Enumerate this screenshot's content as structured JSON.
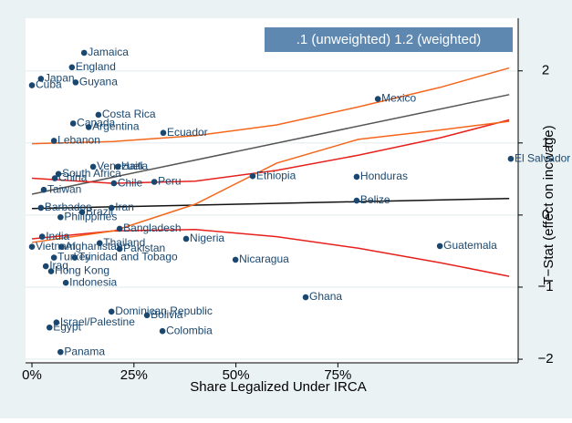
{
  "chart_data": {
    "type": "scatter",
    "annotation": ".1 (unweighted) 1.2 (weighted)",
    "xlabel": "Share Legalized Under IRCA",
    "ylabel": "T−Stat (effect on incwage)",
    "xlim": [
      -1.57,
      119.2
    ],
    "ylim": [
      -2.05,
      2.73
    ],
    "xticks": [
      {
        "value": 0,
        "label": "0%"
      },
      {
        "value": 25,
        "label": "25%"
      },
      {
        "value": 50,
        "label": "50%"
      },
      {
        "value": 75,
        "label": "75%"
      }
    ],
    "yticks": [
      {
        "value": -2,
        "label": "−2"
      },
      {
        "value": -1,
        "label": "−1"
      },
      0,
      1,
      2
    ],
    "grid": true,
    "marker_color": "#1a476f",
    "points": [
      {
        "label": "Jamaica",
        "x": 12.8,
        "y": 2.25
      },
      {
        "label": "England",
        "x": 9.8,
        "y": 2.05
      },
      {
        "label": "Japan",
        "x": 2.2,
        "y": 1.89
      },
      {
        "label": "Cuba",
        "x": 0,
        "y": 1.8
      },
      {
        "label": "Guyana",
        "x": 10.7,
        "y": 1.84
      },
      {
        "label": "Mexico",
        "x": 84.8,
        "y": 1.61
      },
      {
        "label": "Costa Rica",
        "x": 16.3,
        "y": 1.39
      },
      {
        "label": "Canada",
        "x": 10.1,
        "y": 1.27
      },
      {
        "label": "Argentina",
        "x": 13.9,
        "y": 1.22
      },
      {
        "label": "Ecuador",
        "x": 32.2,
        "y": 1.14
      },
      {
        "label": "Lebanon",
        "x": 5.4,
        "y": 1.03
      },
      {
        "label": "Venezuela",
        "x": 15,
        "y": 0.67
      },
      {
        "label": "Haiti",
        "x": 21,
        "y": 0.67
      },
      {
        "label": "South Africa",
        "x": 6.5,
        "y": 0.57
      },
      {
        "label": "China",
        "x": 5.6,
        "y": 0.51
      },
      {
        "label": "Chile",
        "x": 20.1,
        "y": 0.44
      },
      {
        "label": "Peru",
        "x": 30,
        "y": 0.46
      },
      {
        "label": "Ethiopia",
        "x": 54.1,
        "y": 0.54
      },
      {
        "label": "Honduras",
        "x": 79.6,
        "y": 0.53
      },
      {
        "label": "El Salvador",
        "x": 117.4,
        "y": 0.78
      },
      {
        "label": "Taiwan",
        "x": 2.9,
        "y": 0.35
      },
      {
        "label": "Belize",
        "x": 79.6,
        "y": 0.2
      },
      {
        "label": "Barbados",
        "x": 2.2,
        "y": 0.1
      },
      {
        "label": "Iran",
        "x": 19.5,
        "y": 0.1
      },
      {
        "label": "Brazil",
        "x": 12.3,
        "y": 0.04
      },
      {
        "label": "Philippines",
        "x": 7,
        "y": -0.03
      },
      {
        "label": "Bangladesh",
        "x": 21.5,
        "y": -0.19
      },
      {
        "label": "India",
        "x": 2.5,
        "y": -0.3
      },
      {
        "label": "Nigeria",
        "x": 37.8,
        "y": -0.33
      },
      {
        "label": "Thailand",
        "x": 16.6,
        "y": -0.39
      },
      {
        "label": "Vietnam",
        "x": 0,
        "y": -0.44
      },
      {
        "label": "Afghanistan",
        "x": 7.2,
        "y": -0.44
      },
      {
        "label": "Pakistan",
        "x": 21.5,
        "y": -0.47
      },
      {
        "label": "Guatemala",
        "x": 100,
        "y": -0.43
      },
      {
        "label": "Turkey",
        "x": 5.4,
        "y": -0.59
      },
      {
        "label": "Trinidad and Tobago",
        "x": 10.5,
        "y": -0.59
      },
      {
        "label": "Nicaragua",
        "x": 49.9,
        "y": -0.62
      },
      {
        "label": "Iraq",
        "x": 3.4,
        "y": -0.71
      },
      {
        "label": "Hong Kong",
        "x": 4.7,
        "y": -0.78
      },
      {
        "label": "Indonesia",
        "x": 8.3,
        "y": -0.94
      },
      {
        "label": "Ghana",
        "x": 67.1,
        "y": -1.14
      },
      {
        "label": "Dominican Republic",
        "x": 19.5,
        "y": -1.34
      },
      {
        "label": "Bolivia",
        "x": 28.2,
        "y": -1.39
      },
      {
        "label": "Israel/Palestine",
        "x": 6,
        "y": -1.49
      },
      {
        "label": "Egypt",
        "x": 4.3,
        "y": -1.56
      },
      {
        "label": "Colombia",
        "x": 32,
        "y": -1.61
      },
      {
        "label": "Panama",
        "x": 7,
        "y": -1.9
      }
    ],
    "lines": [
      {
        "color": "#555555",
        "x": [
          0,
          117
        ],
        "values": [
          0.29,
          1.67
        ]
      },
      {
        "color": "#111111",
        "x": [
          0,
          117
        ],
        "values": [
          0.09,
          0.23
        ]
      },
      {
        "color": "#e8201c",
        "x": [
          0,
          20,
          40,
          60,
          80,
          100,
          117
        ],
        "values": [
          0.51,
          0.44,
          0.47,
          0.62,
          0.83,
          1.07,
          1.32
        ]
      },
      {
        "color": "#e8201c",
        "x": [
          0,
          20,
          40,
          60,
          80,
          100,
          117
        ],
        "values": [
          -0.33,
          -0.22,
          -0.2,
          -0.3,
          -0.46,
          -0.66,
          -0.85
        ]
      },
      {
        "color": "#f4661b",
        "x": [
          0,
          20,
          40,
          60,
          80,
          100,
          117
        ],
        "values": [
          0.99,
          1.02,
          1.1,
          1.25,
          1.5,
          1.77,
          2.04
        ]
      },
      {
        "color": "#f4661b",
        "x": [
          0,
          20,
          40,
          60,
          80,
          100,
          117
        ],
        "values": [
          -0.38,
          -0.22,
          0.15,
          0.72,
          1.05,
          1.18,
          1.3
        ]
      }
    ]
  }
}
